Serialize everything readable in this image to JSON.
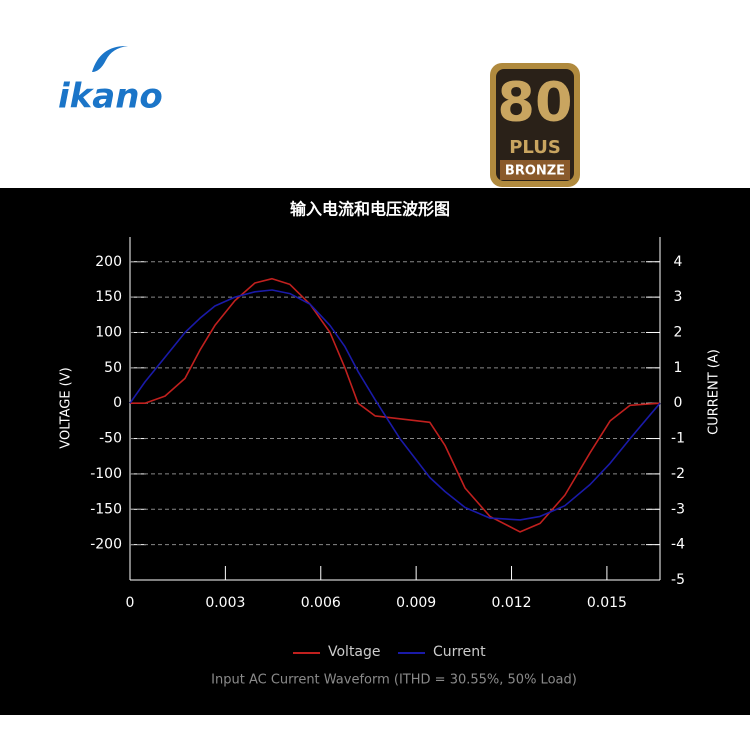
{
  "header": {
    "logo": "ikano",
    "badge": {
      "number": "80",
      "plus": "PLUS",
      "tier": "BRONZE"
    }
  },
  "chart_data": {
    "type": "line",
    "title": "输入电流和电压波形图",
    "y_label": "VOLTAGE (V)",
    "y2_label": "CURRENT (A)",
    "caption": "Input AC Current Waveform (ITHD = 30.55%, 50% Load)",
    "x": [
      0,
      0.00047,
      0.0011,
      0.00173,
      0.0022,
      0.00267,
      0.0033,
      0.00393,
      0.00447,
      0.00503,
      0.00566,
      0.00629,
      0.00676,
      0.00717,
      0.00771,
      0.00849,
      0.00943,
      0.00991,
      0.01054,
      0.01132,
      0.01227,
      0.0129,
      0.01368,
      0.01447,
      0.0151,
      0.01573,
      0.01667
    ],
    "series": [
      {
        "name": "Voltage",
        "color": "#c0201e",
        "values": [
          0,
          0,
          10,
          35,
          75,
          110,
          145,
          170,
          176,
          168,
          140,
          100,
          50,
          0,
          -18,
          -22,
          -27,
          -60,
          -120,
          -160,
          -182,
          -170,
          -130,
          -70,
          -25,
          -3,
          0
        ]
      },
      {
        "name": "Current",
        "color": "#1a1aa8",
        "axis": "y2",
        "values": [
          0,
          0.6,
          1.3,
          2.0,
          2.4,
          2.75,
          3.0,
          3.15,
          3.2,
          3.1,
          2.8,
          2.2,
          1.6,
          0.9,
          0.1,
          -1.0,
          -2.1,
          -2.5,
          -2.95,
          -3.25,
          -3.3,
          -3.2,
          -2.9,
          -2.3,
          -1.7,
          -1.0,
          0
        ]
      }
    ],
    "xlim": [
      0,
      0.01667
    ],
    "xticks": [
      0,
      0.003,
      0.006,
      0.009,
      0.012,
      0.015
    ],
    "ylim": [
      -250,
      235
    ],
    "yticks": [
      200,
      150,
      100,
      50,
      0,
      -50,
      -100,
      -150,
      -200
    ],
    "y2lim": [
      -5,
      4.7
    ],
    "y2ticks": [
      4,
      3,
      2,
      1,
      0,
      -1,
      -2,
      -3,
      -4,
      -5
    ],
    "grid": true
  }
}
